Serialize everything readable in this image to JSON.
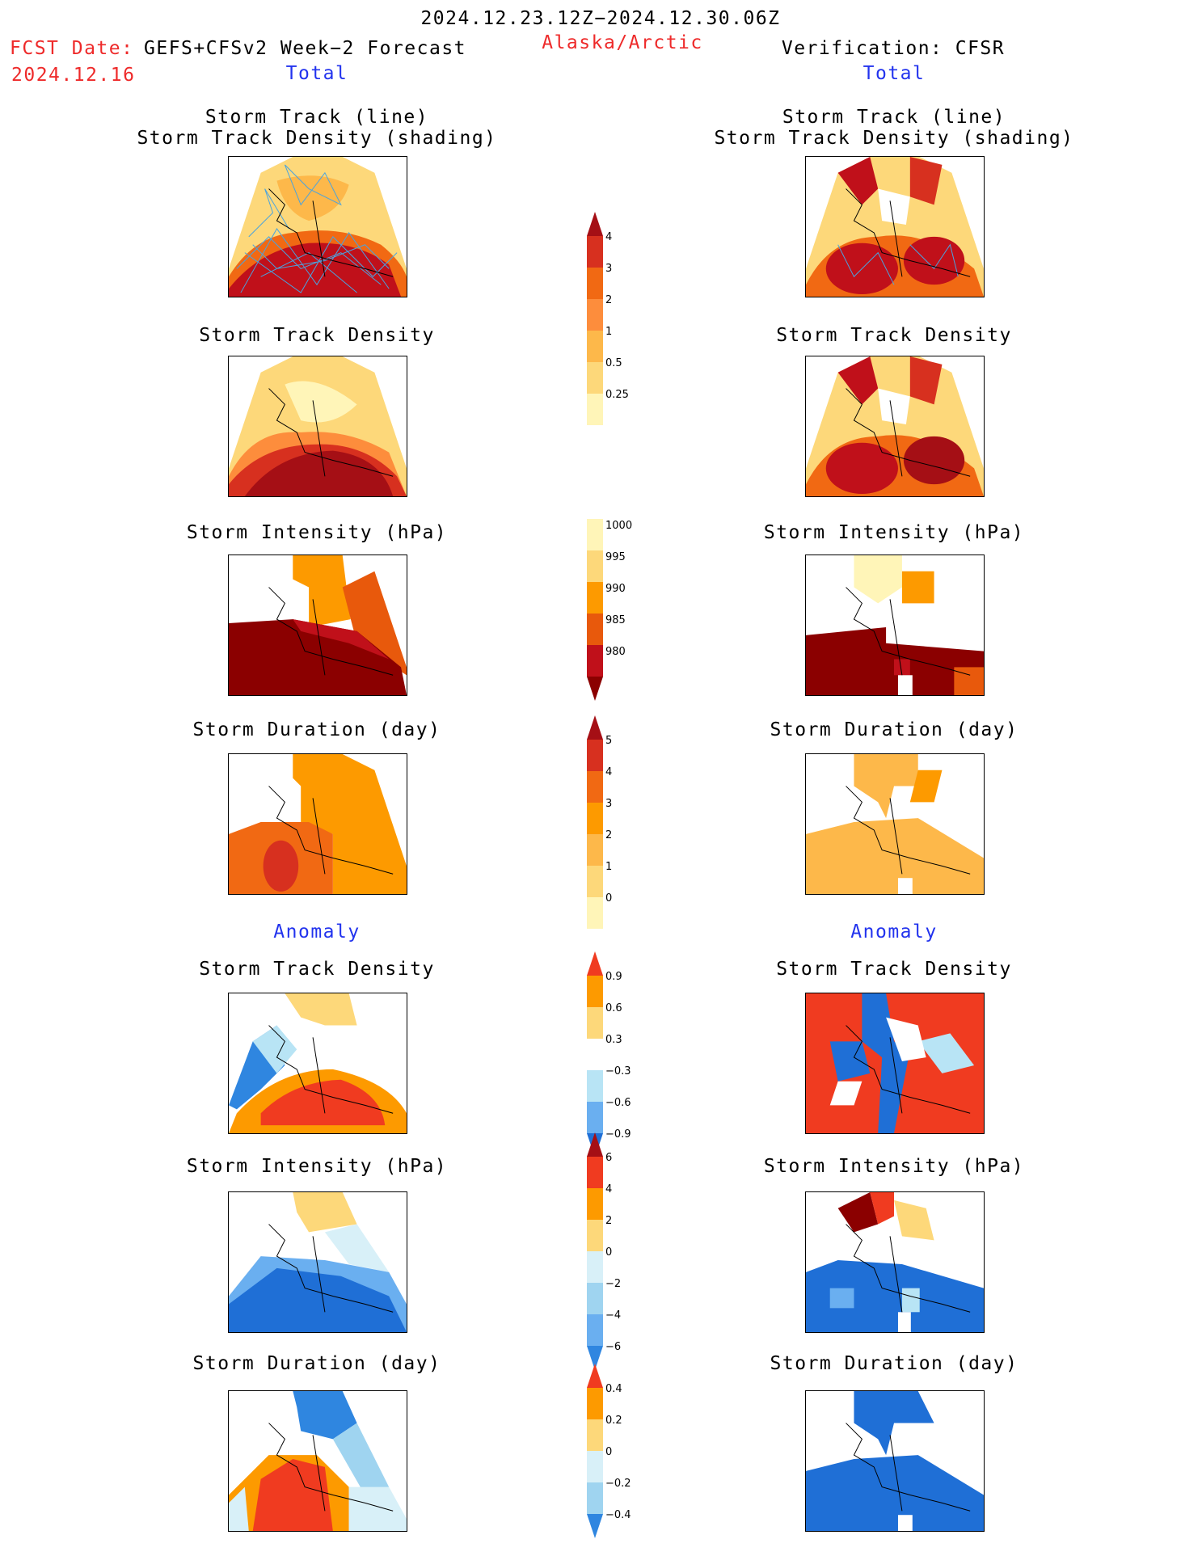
{
  "header": {
    "valid_period": "2024.12.23.12Z−2024.12.30.06Z",
    "fcst_date_label": "FCST Date:",
    "fcst_model": "GEFS+CFSv2 Week−2 Forecast",
    "fcst_date": "2024.12.16",
    "region": "Alaska/Arctic",
    "verification": "Verification: CFSR",
    "left_section": "Total",
    "right_section": "Total",
    "left_anomaly": "Anomaly",
    "right_anomaly": "Anomaly"
  },
  "panels": {
    "track": "Storm Track (line)\nStorm Track Density (shading)",
    "density": "Storm Track Density",
    "intensity": "Storm Intensity (hPa)",
    "duration": "Storm Duration (day)",
    "anom_density": "Storm Track Density",
    "anom_intensity": "Storm Intensity (hPa)",
    "anom_duration": "Storm Duration (day)"
  },
  "colorbars": {
    "density_total": {
      "labels": [
        "4",
        "3",
        "2",
        "1",
        "0.5",
        "0.25"
      ],
      "colors": [
        "#a50f15",
        "#d7301f",
        "#f16913",
        "#fd8d3c",
        "#fdb84a",
        "#fdd87a",
        "#fff5b8"
      ]
    },
    "intensity_total": {
      "labels": [
        "1000",
        "995",
        "990",
        "985",
        "980"
      ],
      "colors": [
        "#fff5b8",
        "#fdd87a",
        "#fd9a00",
        "#e8590c",
        "#c0101a",
        "#8b0000"
      ]
    },
    "duration_total": {
      "labels": [
        "5",
        "4",
        "3",
        "2",
        "1",
        "0"
      ],
      "colors": [
        "#a50f15",
        "#d7301f",
        "#f16913",
        "#fd9a00",
        "#fdb84a",
        "#fdd87a",
        "#fff5b8"
      ]
    },
    "density_anom": {
      "labels": [
        "0.9",
        "0.6",
        "0.3",
        "−0.3",
        "−0.6",
        "−0.9"
      ],
      "colors": [
        "#f03b20",
        "#fd9a00",
        "#fdd87a",
        "#ffffff",
        "#b8e4f5",
        "#6aaff0",
        "#1f6fd6"
      ]
    },
    "intensity_anom": {
      "labels": [
        "6",
        "4",
        "2",
        "0",
        "−2",
        "−4",
        "−6"
      ],
      "colors": [
        "#a50f15",
        "#f03b20",
        "#fd9a00",
        "#fdd87a",
        "#d8f0f8",
        "#9fd4f0",
        "#6aaff0",
        "#2f86e0"
      ]
    },
    "duration_anom": {
      "labels": [
        "0.4",
        "0.2",
        "0",
        "−0.2",
        "−0.4"
      ],
      "colors": [
        "#f03b20",
        "#fd9a00",
        "#fdd87a",
        "#d8f0f8",
        "#9fd4f0",
        "#2f86e0"
      ]
    }
  }
}
